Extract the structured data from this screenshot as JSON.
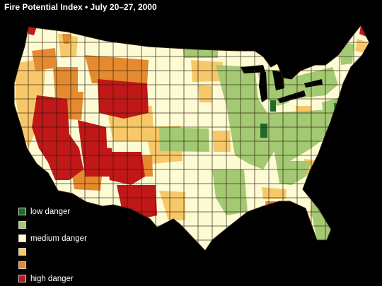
{
  "title": "Fire Potential Index • July 20–27, 2000",
  "colors": {
    "background": "#000000",
    "low": "#1f6b2a",
    "low_moderate": "#a3c972",
    "medium": "#fdfbd3",
    "medium_high": "#f7c86a",
    "high_moderate": "#e58a2e",
    "high": "#c01818",
    "borders": "#2a1a0a"
  },
  "legend": {
    "items": [
      {
        "label": "low danger",
        "color": "#1f6b2a"
      },
      {
        "label": "",
        "color": "#a3c972"
      },
      {
        "label": "medium danger",
        "color": "#fdfbd3"
      },
      {
        "label": "",
        "color": "#f7c86a"
      },
      {
        "label": "",
        "color": "#e58a2e"
      },
      {
        "label": "high danger",
        "color": "#c01818"
      }
    ]
  }
}
